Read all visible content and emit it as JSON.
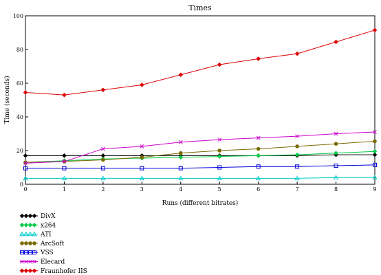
{
  "chart_data": {
    "type": "line",
    "title": "Times",
    "xlabel": "Runs (different bitrates)",
    "ylabel": "Time (seconds)",
    "x": [
      0,
      1,
      2,
      3,
      4,
      5,
      6,
      7,
      8,
      9
    ],
    "xlim": [
      0,
      9
    ],
    "ylim": [
      0,
      100
    ],
    "xticks": [
      "0",
      "1",
      "2",
      "3",
      "4",
      "5",
      "6",
      "7",
      "8",
      "9"
    ],
    "yticks": [
      "0",
      "20",
      "40",
      "60",
      "80",
      "100"
    ],
    "grid": false,
    "legend_position": "bottom-left",
    "series": [
      {
        "name": "DivX",
        "color": "#000000",
        "marker": "diamond",
        "values": [
          17,
          17,
          17,
          17,
          17,
          17,
          17,
          17,
          17.5,
          17.5
        ]
      },
      {
        "name": "x264",
        "color": "#00cc44",
        "marker": "diamond",
        "values": [
          13,
          14,
          15,
          15.5,
          16,
          16.5,
          17,
          17.5,
          18.5,
          19.5
        ]
      },
      {
        "name": "ATI",
        "color": "#00cccc",
        "marker": "triangle",
        "values": [
          3.5,
          3.5,
          3.5,
          3.5,
          3.5,
          3.5,
          3.5,
          3.5,
          4,
          4
        ]
      },
      {
        "name": "ArcSoft",
        "color": "#7a6a00",
        "marker": "circle",
        "values": [
          13,
          13.5,
          14.5,
          16,
          18.5,
          20,
          21,
          22.5,
          24,
          25.5
        ]
      },
      {
        "name": "VSS",
        "color": "#0000dd",
        "marker": "square",
        "values": [
          9.5,
          9.5,
          9.5,
          9.5,
          9.5,
          10,
          10.5,
          10.5,
          11,
          11.5
        ]
      },
      {
        "name": "Elecard",
        "color": "#cc00cc",
        "marker": "x",
        "values": [
          12.5,
          13.5,
          21,
          22.5,
          25,
          26.5,
          27.5,
          28.5,
          30,
          31
        ]
      },
      {
        "name": "Fraunhofer IIS",
        "color": "#dd0000",
        "marker": "diamond",
        "values": [
          54.5,
          53,
          56,
          59,
          65,
          71,
          74.5,
          77.5,
          84.5,
          91.5
        ]
      }
    ]
  }
}
